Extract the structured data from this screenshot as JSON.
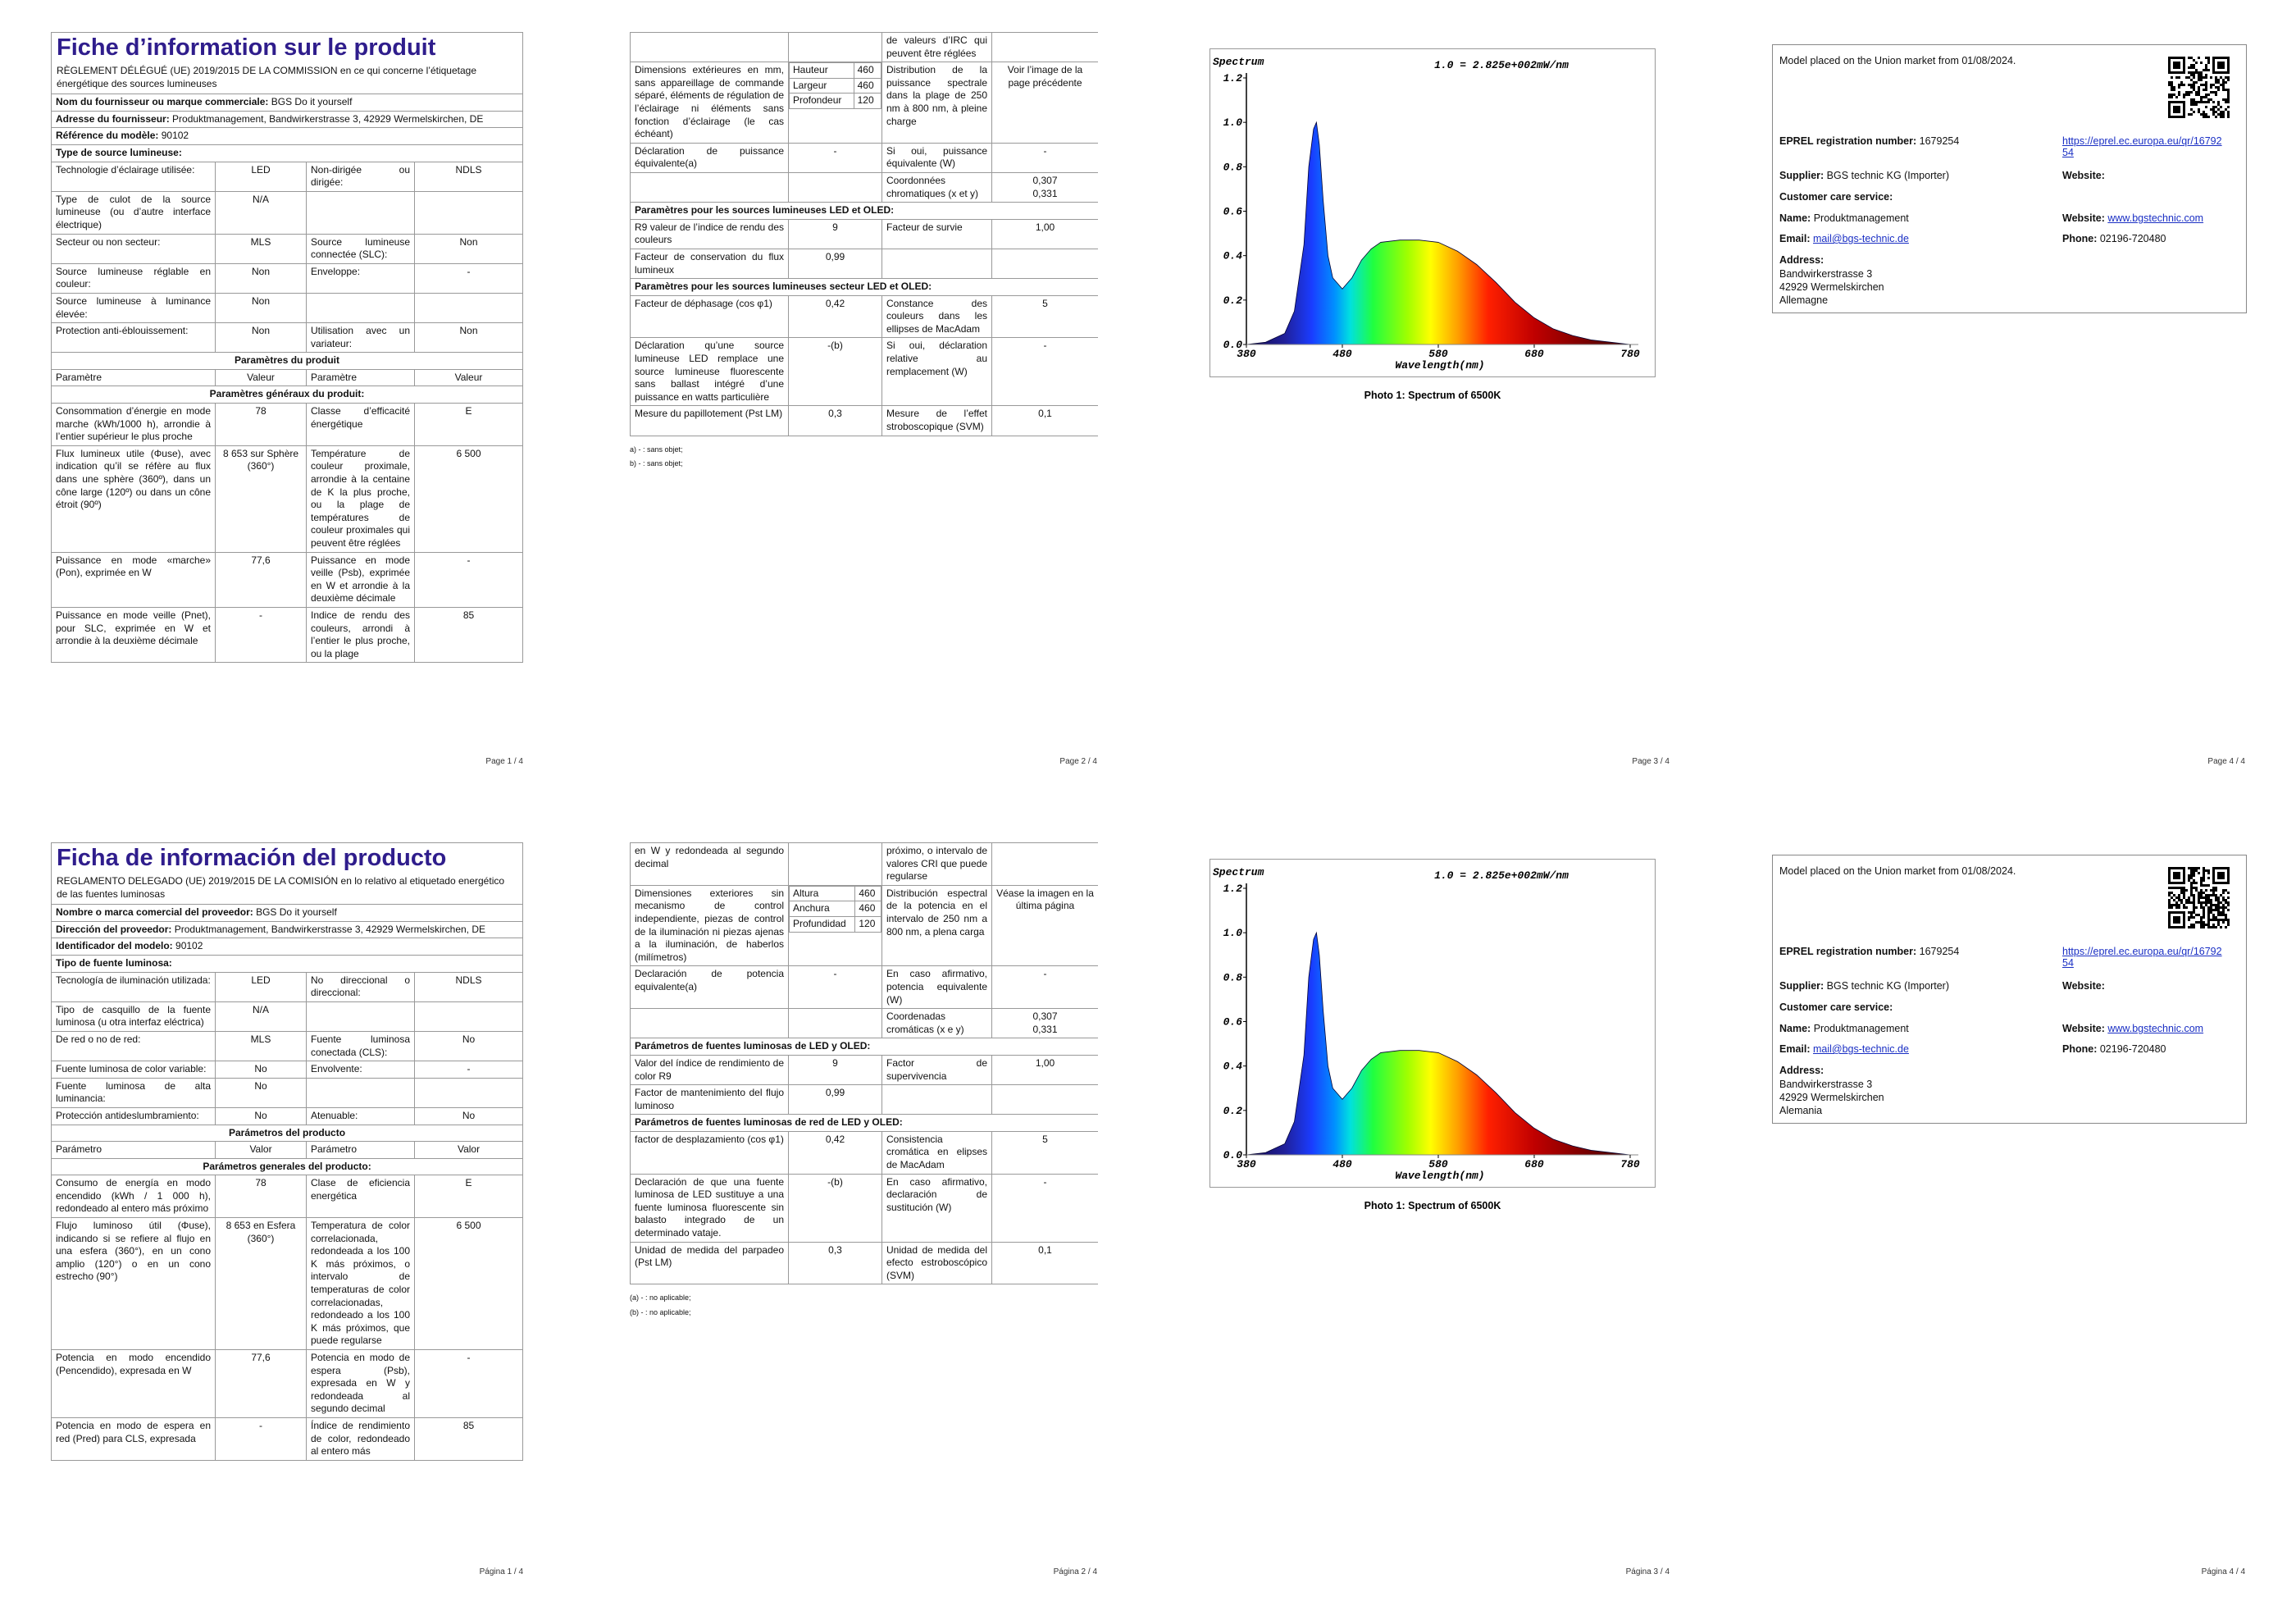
{
  "documents": [
    {
      "page1": {
        "title": "Fiche d’information sur le produit",
        "regulation": "RÈGLEMENT DÉLÉGUÉ (UE) 2019/2015 DE LA COMMISSION en ce qui concerne l’étiquetage énergétique des sources lumineuses",
        "rows": [
          {
            "label": "Nom du fournisseur ou marque commerciale:",
            "value": "BGS Do it yourself"
          },
          {
            "label": "Adresse du fournisseur:",
            "value": "Produktmanagement, Bandwirkerstrasse 3, 42929 Wermelskirchen, DE"
          },
          {
            "label": "Référence du modèle:",
            "value": "90102"
          },
          {
            "label": "Type de source lumineuse:"
          },
          [
            "Technologie d’éclairage utilisée:",
            "LED",
            "Non-dirigée ou dirigée:",
            "NDLS"
          ],
          [
            "Type de culot de la source lumineuse (ou d’autre interface électrique)",
            "N/A",
            null,
            null
          ],
          [
            "Secteur ou non secteur:",
            "MLS",
            "Source lumineuse connectée (SLC):",
            "Non"
          ],
          [
            "Source lumineuse réglable en couleur:",
            "Non",
            "Enveloppe:",
            "-"
          ],
          [
            "Source lumineuse à luminance élevée:",
            "Non",
            null,
            null
          ],
          [
            "Protection anti-éblouissement:",
            "Non",
            "Utilisation avec un variateur:",
            "Non"
          ],
          {
            "heading": "Paramètres du produit"
          },
          [
            "Paramètre",
            "Valeur",
            "Paramètre",
            "Valeur"
          ],
          {
            "heading": "Paramètres généraux du produit:"
          },
          [
            "Consommation d’énergie en mode marche (kWh/1000 h), arrondie à l’entier supérieur le plus proche",
            "78",
            "Classe d’efficacité énergétique",
            "E"
          ],
          [
            "Flux lumineux utile (Φuse), avec indication qu’il se réfère au flux dans une sphère (360º), dans un cône large (120º) ou dans un cône étroit (90º)",
            "8 653 sur Sphère (360°)",
            "Température de couleur proximale, arrondie à la centaine de K la plus proche, ou la plage de températures de couleur proximales qui peuvent être réglées",
            "6 500"
          ],
          [
            "Puissance en mode «marche» (Pon), exprimée en W",
            "77,6",
            "Puissance en mode veille (Psb), exprimée en W et arrondie à la deuxième décimale",
            "-"
          ],
          [
            "Puissance en mode veille (Pnet), pour SLC, exprimée en W et arrondie à la deuxième décimale",
            "-",
            "Indice de rendu des couleurs, arrondi à l’entier le plus proche, ou la plage",
            "85"
          ]
        ],
        "page_number": "Page 1 / 4"
      },
      "page2": {
        "rows": [
          [
            null,
            null,
            "de valeurs d’IRC qui peuvent être réglées",
            null
          ],
          [
            "Dimensions extérieures en mm, sans appareillage de commande séparé, éléments de régulation de l’éclairage ni éléments sans fonction d’éclairage (le cas échéant)",
            [
              [
                "Hauteur",
                "460"
              ],
              [
                "Largeur",
                "460"
              ],
              [
                "Profondeur",
                "120"
              ]
            ],
            "Distribution de la puissance spectrale dans la plage de 250 nm à 800 nm, à pleine charge",
            "Voir l’image de la page précédente"
          ],
          [
            "Déclaration de puissance équivalente(a)",
            "-",
            "Si oui, puissance équivalente (W)",
            "-"
          ],
          [
            null,
            null,
            "Coordonnées chromatiques (x et y)",
            "0,307\n0,331"
          ],
          {
            "label": "Paramètres pour les sources lumineuses LED et OLED:"
          },
          [
            "R9 valeur de l’indice de rendu des couleurs",
            "9",
            "Facteur de survie",
            "1,00"
          ],
          [
            "Facteur de conservation du flux lumineux",
            "0,99",
            null,
            null
          ],
          {
            "label": "Paramètres pour les sources lumineuses secteur LED et OLED:"
          },
          [
            "Facteur de déphasage (cos φ1)",
            "0,42",
            "Constance des couleurs dans les ellipses de MacAdam",
            "5"
          ],
          [
            "Déclaration qu’une source lumineuse LED remplace une source lumineuse fluorescente sans ballast intégré d’une puissance en watts particulière",
            "-(b)",
            "Si oui, déclaration relative au remplacement (W)",
            "-"
          ],
          [
            "Mesure du papillotement (Pst LM)",
            "0,3",
            "Mesure de l’effet stroboscopique (SVM)",
            "0,1"
          ]
        ],
        "footnotes": [
          "a) - : sans objet;",
          "b) - : sans objet;"
        ],
        "page_number": "Page 2 / 4"
      },
      "page3": {
        "spectrum": {
          "title": "Spectrum",
          "scale_note": "1.0 = 2.825e+002mW/nm",
          "x_label": "Wavelength(nm)",
          "x": [
            380,
            400,
            420,
            430,
            440,
            445,
            450,
            453,
            456,
            460,
            465,
            470,
            480,
            490,
            500,
            510,
            520,
            540,
            560,
            580,
            600,
            620,
            640,
            660,
            680,
            700,
            720,
            740,
            760,
            780
          ],
          "values": [
            0,
            0.01,
            0.05,
            0.15,
            0.45,
            0.8,
            0.97,
            1.0,
            0.9,
            0.65,
            0.4,
            0.3,
            0.25,
            0.3,
            0.38,
            0.43,
            0.46,
            0.47,
            0.47,
            0.46,
            0.42,
            0.36,
            0.28,
            0.19,
            0.12,
            0.07,
            0.04,
            0.02,
            0.01,
            0
          ],
          "xlim": [
            380,
            780
          ],
          "ylim": [
            0,
            1.2
          ],
          "xticks": [
            380,
            480,
            580,
            680,
            780
          ],
          "yticks": [
            {
              "value": 0,
              "label": "0.0"
            },
            0.2,
            0.4,
            0.6,
            0.8,
            {
              "value": 1,
              "label": "1.0"
            },
            1.2
          ]
        },
        "caption": "Photo 1: Spectrum of 6500K",
        "page_number": "Page 3 / 4"
      },
      "page4": {
        "market": "Model placed on the Union market from 01/08/2024.",
        "eprel_label": "EPREL registration number:",
        "eprel": "1679254",
        "eprel_url": "https://eprel.ec.europa.eu/qr/1679254",
        "supplier_label": "Supplier:",
        "supplier": "BGS technic KG (Importer)",
        "supplier_website_label": "Website:",
        "care_label": "Customer care service:",
        "name_label": "Name:",
        "name": "Produktmanagement",
        "website_label": "Website:",
        "website": "www.bgstechnic.com",
        "email_label": "Email:",
        "email": "mail@bgs-technic.de",
        "phone_label": "Phone:",
        "phone": "02196-720480",
        "address_label": "Address:",
        "address": [
          "Bandwirkerstrasse 3",
          "42929 Wermelskirchen",
          "Allemagne"
        ],
        "page_number": "Page 4 / 4"
      }
    },
    {
      "page1": {
        "title": "Ficha de información del producto",
        "regulation": "REGLAMENTO DELEGADO (UE) 2019/2015 DE LA COMISIÓN en lo relativo al etiquetado energético de las fuentes luminosas",
        "rows": [
          {
            "label": "Nombre o marca comercial del proveedor:",
            "value": "BGS Do it yourself"
          },
          {
            "label": "Dirección del proveedor:",
            "value": "Produktmanagement, Bandwirkerstrasse 3, 42929 Wermelskirchen, DE"
          },
          {
            "label": "Identificador del modelo:",
            "value": "90102"
          },
          {
            "label": "Tipo de fuente luminosa:"
          },
          [
            "Tecnología de iluminación utilizada:",
            "LED",
            "No direccional o direccional:",
            "NDLS"
          ],
          [
            "Tipo de casquillo de la fuente luminosa (u otra interfaz eléctrica)",
            "N/A",
            null,
            null
          ],
          [
            "De red o no de red:",
            "MLS",
            "Fuente luminosa conectada (CLS):",
            "No"
          ],
          [
            "Fuente luminosa de color variable:",
            "No",
            "Envolvente:",
            "-"
          ],
          [
            "Fuente luminosa de alta luminancia:",
            "No",
            null,
            null
          ],
          [
            "Protección antideslumbramiento:",
            "No",
            "Atenuable:",
            "No"
          ],
          {
            "heading": "Parámetros del producto"
          },
          [
            "Parámetro",
            "Valor",
            "Parámetro",
            "Valor"
          ],
          {
            "heading": "Parámetros generales del producto:"
          },
          [
            "Consumo de energía en modo encendido (kWh / 1 000 h), redondeado al entero más próximo",
            "78",
            "Clase de eficiencia energética",
            "E"
          ],
          [
            "Flujo luminoso útil (Φuse), indicando si se refiere al flujo en una esfera (360°), en un cono amplio (120°) o en un cono estrecho (90°)",
            "8 653 en Esfera (360°)",
            "Temperatura de color correlacionada, redondeada a los 100 K más próximos, o intervalo de temperaturas de color correlacionadas, redondeado a los 100 K más próximos, que puede regularse",
            "6 500"
          ],
          [
            "Potencia en modo encendido (Pencendido), expresada en W",
            "77,6",
            "Potencia en modo de espera (Psb), expresada en W y redondeada al segundo decimal",
            "-"
          ],
          [
            "Potencia en modo de espera en red (Pred) para CLS, expresada",
            "-",
            "Índice de rendimiento de color, redondeado al entero más",
            "85"
          ]
        ],
        "page_number": "Página 1 / 4"
      },
      "page2": {
        "rows": [
          [
            "en W y redondeada al segundo decimal",
            null,
            "próximo, o intervalo de valores CRI que puede regularse",
            null
          ],
          [
            "Dimensiones exteriores sin mecanismo de control independiente, piezas de control de la iluminación ni piezas ajenas a la iluminación, de haberlos (milímetros)",
            [
              [
                "Altura",
                "460"
              ],
              [
                "Anchura",
                "460"
              ],
              [
                "Profundidad",
                "120"
              ]
            ],
            "Distribución espectral de la potencia en el intervalo de 250 nm a 800 nm, a plena carga",
            "Véase la imagen en la última página"
          ],
          [
            "Declaración de potencia equivalente(a)",
            "-",
            "En caso afirmativo, potencia equivalente (W)",
            "-"
          ],
          [
            null,
            null,
            "Coordenadas cromáticas (x e y)",
            "0,307\n0,331"
          ],
          {
            "label": "Parámetros de fuentes luminosas de LED y OLED:"
          },
          [
            "Valor del índice de rendimiento de color R9",
            "9",
            "Factor de supervivencia",
            "1,00"
          ],
          [
            "Factor de mantenimiento del flujo luminoso",
            "0,99",
            null,
            null
          ],
          {
            "label": "Parámetros de fuentes luminosas de red de LED y OLED:"
          },
          [
            "factor de desplazamiento (cos φ1)",
            "0,42",
            "Consistencia cromática en elipses de MacAdam",
            "5"
          ],
          [
            "Declaración de que una fuente luminosa de LED sustituye a una fuente luminosa fluorescente sin balasto integrado de un determinado vataje.",
            "-(b)",
            "En caso afirmativo, declaración de sustitución (W)",
            "-"
          ],
          [
            "Unidad de medida del parpadeo (Pst LM)",
            "0,3",
            "Unidad de medida del efecto estroboscópico (SVM)",
            "0,1"
          ]
        ],
        "footnotes": [
          "(a) - : no aplicable;",
          "(b) - : no aplicable;"
        ],
        "page_number": "Página 2 / 4"
      },
      "page3": {
        "spectrum": {
          "title": "Spectrum",
          "scale_note": "1.0 = 2.825e+002mW/nm",
          "x_label": "Wavelength(nm)",
          "x": [
            380,
            400,
            420,
            430,
            440,
            445,
            450,
            453,
            456,
            460,
            465,
            470,
            480,
            490,
            500,
            510,
            520,
            540,
            560,
            580,
            600,
            620,
            640,
            660,
            680,
            700,
            720,
            740,
            760,
            780
          ],
          "values": [
            0,
            0.01,
            0.05,
            0.15,
            0.45,
            0.8,
            0.97,
            1.0,
            0.9,
            0.65,
            0.4,
            0.3,
            0.25,
            0.3,
            0.38,
            0.43,
            0.46,
            0.47,
            0.47,
            0.46,
            0.42,
            0.36,
            0.28,
            0.19,
            0.12,
            0.07,
            0.04,
            0.02,
            0.01,
            0
          ],
          "xlim": [
            380,
            780
          ],
          "ylim": [
            0,
            1.2
          ],
          "xticks": [
            380,
            480,
            580,
            680,
            780
          ],
          "yticks": [
            {
              "value": 0,
              "label": "0.0"
            },
            0.2,
            0.4,
            0.6,
            0.8,
            {
              "value": 1,
              "label": "1.0"
            },
            1.2
          ]
        },
        "caption": "Photo 1: Spectrum of 6500K",
        "page_number": "Página 3 / 4"
      },
      "page4": {
        "market": "Model placed on the Union market from 01/08/2024.",
        "eprel_label": "EPREL registration number:",
        "eprel": "1679254",
        "eprel_url": "https://eprel.ec.europa.eu/qr/1679254",
        "supplier_label": "Supplier:",
        "supplier": "BGS technic KG (Importer)",
        "supplier_website_label": "Website:",
        "care_label": "Customer care service:",
        "name_label": "Name:",
        "name": "Produktmanagement",
        "website_label": "Website:",
        "website": "www.bgstechnic.com",
        "email_label": "Email:",
        "email": "mail@bgs-technic.de",
        "phone_label": "Phone:",
        "phone": "02196-720480",
        "address_label": "Address:",
        "address": [
          "Bandwirkerstrasse 3",
          "42929 Wermelskirchen",
          "Alemania"
        ],
        "page_number": "Página 4 / 4"
      }
    }
  ]
}
